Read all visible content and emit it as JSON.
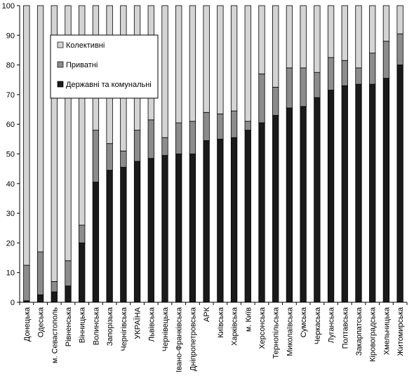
{
  "chart_data": {
    "type": "bar",
    "stacked": true,
    "categories": [
      "Донецька",
      "Одеська",
      "м. Севастополь",
      "Рівненська",
      "Вінницька",
      "Волинська",
      "Запорізька",
      "Чернігівська",
      "УКРАЇНА",
      "Львівська",
      "Чернівецька",
      "Івано-Франківська",
      "Дніпропетровська",
      "АРК",
      "Київська",
      "Харківська",
      "м. Київ",
      "Херсонська",
      "Тернопільська",
      "Миколаївська",
      "Сумська",
      "Черкаська",
      "Луганська",
      "Полтавська",
      "Закарпатська",
      "Кіровоградська",
      "Хмельницька",
      "Житомирська"
    ],
    "series": [
      {
        "name": "Державні та комунальні",
        "color": "#1a1a1a",
        "values": [
          0.5,
          2.5,
          3.5,
          5.5,
          20,
          40.5,
          44.5,
          45.5,
          47.5,
          48.5,
          49.5,
          50,
          50,
          54.5,
          55,
          55.5,
          58,
          60.5,
          63,
          65.5,
          66,
          69,
          71.5,
          73,
          73.5,
          73.5,
          75.5,
          80
        ]
      },
      {
        "name": "Приватні",
        "color": "#8c8c8c",
        "values": [
          12,
          14.5,
          3.5,
          8.5,
          6,
          17.5,
          9,
          5.5,
          10.5,
          13,
          6,
          10.5,
          11,
          9.5,
          8.5,
          9,
          3,
          16.5,
          9.5,
          13.5,
          13,
          8.5,
          11,
          8.5,
          5.5,
          10.5,
          12.5,
          10.5
        ]
      },
      {
        "name": "Колективні",
        "color": "#d4d4d4",
        "values": [
          87.5,
          83,
          93,
          86,
          74,
          42,
          46.5,
          49,
          42,
          38.5,
          44.5,
          39.5,
          39,
          36,
          36.5,
          35.5,
          39,
          23,
          27.5,
          21,
          21,
          22.5,
          17.5,
          18.5,
          21,
          16,
          12,
          9.5
        ]
      }
    ],
    "ylim": [
      0,
      100
    ],
    "yticks": [
      "0",
      "10",
      "20",
      "30",
      "40",
      "50",
      "60",
      "70",
      "80",
      "90",
      "100"
    ],
    "legend": {
      "position": "upper-left-inside",
      "entries": [
        {
          "label": "Колективні",
          "color": "#d4d4d4"
        },
        {
          "label": "Приватні",
          "color": "#8c8c8c"
        },
        {
          "label": "Державні та комунальні",
          "color": "#1a1a1a"
        }
      ]
    },
    "grid": false
  }
}
